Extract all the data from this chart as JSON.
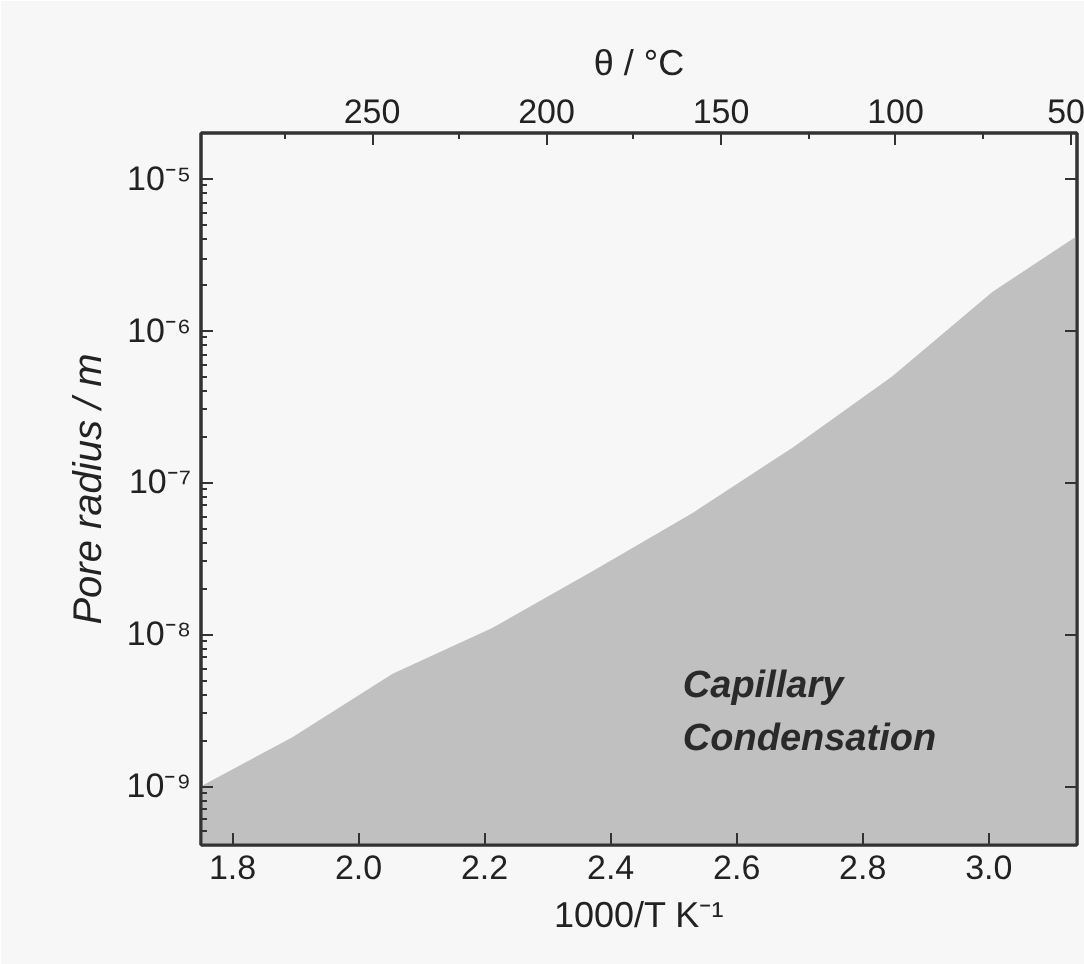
{
  "chart_data": {
    "type": "area",
    "xlabel": "1000/T K⁻¹",
    "ylabel": "Pore radius / m",
    "x2label": "θ / °C",
    "x": [
      1.75,
      1.895,
      2.054,
      2.212,
      2.371,
      2.53,
      2.689,
      2.847,
      3.006,
      3.14
    ],
    "series": [
      {
        "color": "#c0c0c1",
        "values": [
          1e-09,
          2.1e-09,
          5.5e-09,
          1.1e-08,
          2.6e-08,
          6.3e-08,
          1.7e-07,
          5e-07,
          1.8e-06,
          4.2e-06
        ]
      }
    ],
    "xlim": [
      1.75,
      3.14
    ],
    "xticks": [
      1.8,
      {
        "value": 2.0,
        "label": "2.0"
      },
      2.2,
      2.4,
      2.6,
      2.8,
      {
        "value": 3.0,
        "label": "3.0"
      }
    ],
    "x2lim": [
      299,
      48
    ],
    "x2ticks": [
      250,
      200,
      150,
      100,
      50
    ],
    "ylim": [
      4.1e-10,
      2e-05
    ],
    "yticks": [
      {
        "value": 1e-09,
        "label": "10⁻⁹"
      },
      {
        "value": 1e-08,
        "label": "10⁻⁸"
      },
      {
        "value": 1e-07,
        "label": "10⁻⁷"
      },
      {
        "value": 1e-06,
        "label": "10⁻⁶"
      },
      {
        "value": 1e-05,
        "label": "10⁻⁵"
      }
    ],
    "log": "y",
    "grid": false,
    "annotations": [
      "Capillary Condensation"
    ]
  }
}
